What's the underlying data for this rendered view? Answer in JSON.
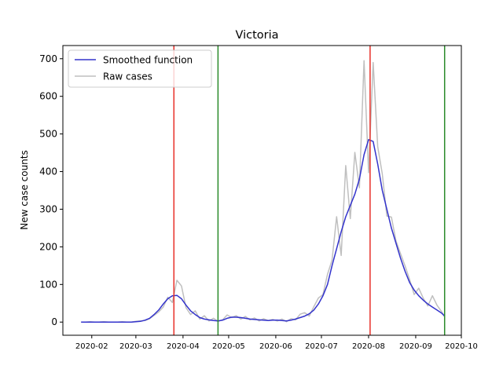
{
  "chart_data": {
    "type": "line",
    "title": "Victoria",
    "xlabel": "",
    "ylabel": "New case counts",
    "xlim": [
      "2020-01-13",
      "2020-10-01"
    ],
    "ylim": [
      -35,
      735
    ],
    "x_ticks": [
      "2020-02",
      "2020-03",
      "2020-04",
      "2020-05",
      "2020-06",
      "2020-07",
      "2020-08",
      "2020-09",
      "2020-10"
    ],
    "x_tick_dates": [
      "2020-02-01",
      "2020-03-01",
      "2020-04-01",
      "2020-05-01",
      "2020-06-01",
      "2020-07-01",
      "2020-08-01",
      "2020-09-01",
      "2020-10-01"
    ],
    "y_ticks": [
      0,
      100,
      200,
      300,
      400,
      500,
      600,
      700
    ],
    "grid": false,
    "legend_position": "top-left",
    "x": [
      "2020-01-25",
      "2020-01-28",
      "2020-01-31",
      "2020-02-03",
      "2020-02-06",
      "2020-02-09",
      "2020-02-12",
      "2020-02-15",
      "2020-02-18",
      "2020-02-21",
      "2020-02-24",
      "2020-02-27",
      "2020-03-01",
      "2020-03-04",
      "2020-03-07",
      "2020-03-10",
      "2020-03-13",
      "2020-03-16",
      "2020-03-19",
      "2020-03-22",
      "2020-03-25",
      "2020-03-28",
      "2020-03-31",
      "2020-04-03",
      "2020-04-06",
      "2020-04-09",
      "2020-04-12",
      "2020-04-15",
      "2020-04-18",
      "2020-04-21",
      "2020-04-24",
      "2020-04-27",
      "2020-04-30",
      "2020-05-03",
      "2020-05-06",
      "2020-05-09",
      "2020-05-12",
      "2020-05-15",
      "2020-05-18",
      "2020-05-21",
      "2020-05-24",
      "2020-05-27",
      "2020-05-30",
      "2020-06-02",
      "2020-06-05",
      "2020-06-08",
      "2020-06-11",
      "2020-06-14",
      "2020-06-17",
      "2020-06-20",
      "2020-06-23",
      "2020-06-26",
      "2020-06-29",
      "2020-07-02",
      "2020-07-05",
      "2020-07-08",
      "2020-07-11",
      "2020-07-14",
      "2020-07-17",
      "2020-07-20",
      "2020-07-23",
      "2020-07-26",
      "2020-07-29",
      "2020-08-01",
      "2020-08-04",
      "2020-08-07",
      "2020-08-10",
      "2020-08-13",
      "2020-08-16",
      "2020-08-19",
      "2020-08-22",
      "2020-08-25",
      "2020-08-28",
      "2020-08-31",
      "2020-09-03",
      "2020-09-06",
      "2020-09-09",
      "2020-09-12",
      "2020-09-15",
      "2020-09-18",
      "2020-09-20"
    ],
    "series": [
      {
        "name": "Raw cases",
        "color": "#bfbfbf",
        "values": [
          0,
          0,
          1,
          0,
          0,
          1,
          0,
          0,
          0,
          1,
          0,
          0,
          2,
          3,
          4,
          9,
          18,
          27,
          40,
          66,
          52,
          111,
          96,
          38,
          20,
          30,
          8,
          17,
          3,
          10,
          2,
          6,
          19,
          12,
          17,
          8,
          15,
          6,
          11,
          3,
          9,
          4,
          7,
          3,
          8,
          1,
          9,
          6,
          21,
          25,
          16,
          41,
          64,
          73,
          127,
          165,
          280,
          177,
          416,
          275,
          451,
          357,
          695,
          397,
          690,
          466,
          394,
          282,
          279,
          216,
          182,
          149,
          113,
          73,
          90,
          63,
          43,
          70,
          45,
          28,
          14
        ]
      },
      {
        "name": "Smoothed function",
        "color": "#3333cc",
        "values": [
          0,
          0,
          0,
          0,
          0,
          0,
          0,
          0,
          0,
          0,
          0,
          0,
          1,
          2,
          5,
          10,
          20,
          32,
          48,
          62,
          70,
          71,
          62,
          45,
          30,
          20,
          12,
          8,
          6,
          4,
          3,
          5,
          10,
          13,
          13,
          12,
          10,
          8,
          7,
          6,
          5,
          4,
          5,
          5,
          4,
          3,
          5,
          8,
          12,
          16,
          22,
          32,
          48,
          70,
          100,
          150,
          195,
          240,
          280,
          310,
          340,
          380,
          445,
          485,
          480,
          420,
          350,
          300,
          250,
          210,
          170,
          135,
          105,
          85,
          70,
          58,
          48,
          40,
          32,
          24,
          16
        ]
      }
    ],
    "vertical_lines": [
      {
        "date": "2020-03-26",
        "color": "#e8312a"
      },
      {
        "date": "2020-04-24",
        "color": "#2a8a2a"
      },
      {
        "date": "2020-08-02",
        "color": "#e8312a"
      },
      {
        "date": "2020-09-20",
        "color": "#2a8a2a"
      }
    ]
  }
}
